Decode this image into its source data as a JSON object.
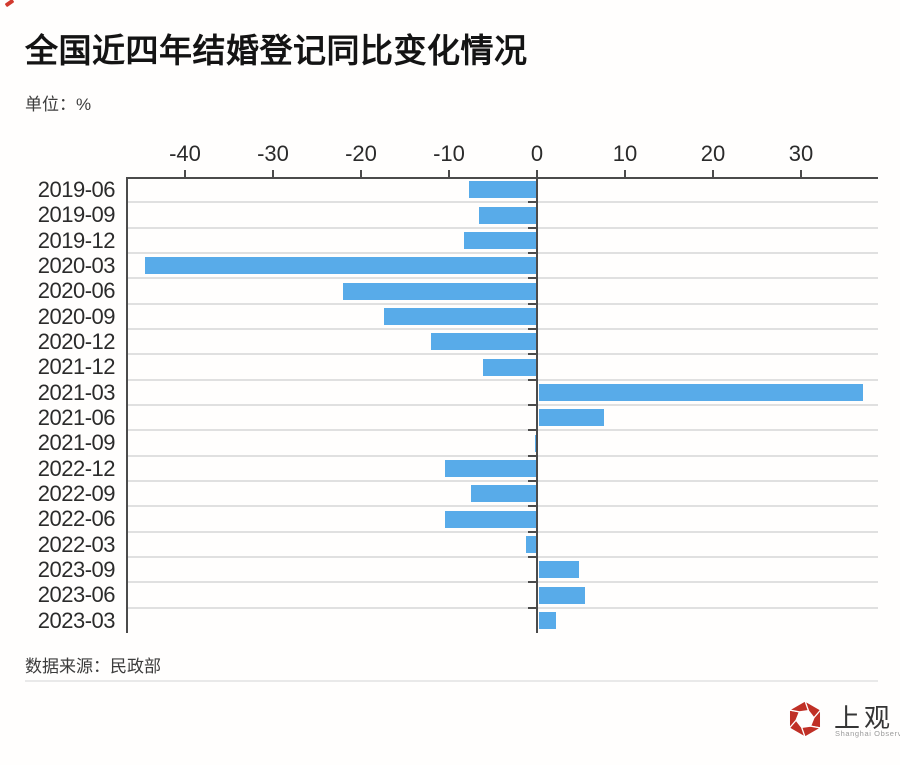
{
  "header": {
    "title": "全国近四年结婚登记同比变化情况",
    "unit_label": "单位：%"
  },
  "chart_data": {
    "type": "bar",
    "orientation": "horizontal",
    "title": "全国近四年结婚登记同比变化情况",
    "unit": "%",
    "categories": [
      "2019-06",
      "2019-09",
      "2019-12",
      "2020-03",
      "2020-06",
      "2020-09",
      "2020-12",
      "2021-12",
      "2021-03",
      "2021-06",
      "2021-09",
      "2022-12",
      "2022-09",
      "2022-06",
      "2022-03",
      "2023-09",
      "2023-06",
      "2023-03"
    ],
    "values": [
      -7.7,
      -6.6,
      -8.3,
      -44.5,
      -22.0,
      -17.4,
      -12.1,
      -6.1,
      36.8,
      7.4,
      -0.2,
      -10.5,
      -7.5,
      -10.4,
      -1.2,
      4.5,
      5.2,
      1.9
    ],
    "x_ticks": [
      -40,
      -30,
      -20,
      -10,
      0,
      10,
      20,
      30
    ],
    "xlim": [
      -46.7,
      38.8
    ],
    "axis_position": "top",
    "grid": true,
    "legend": false,
    "bar_color": "#58abe9"
  },
  "footer": {
    "source": "数据来源：民政部",
    "logo_text": "上观",
    "logo_subtext": "Shanghai Observer"
  },
  "colors": {
    "bar": "#58abe9",
    "axis": "#4b4b4b",
    "grid": "#e0e0e0",
    "logo_red": "#c03026"
  }
}
